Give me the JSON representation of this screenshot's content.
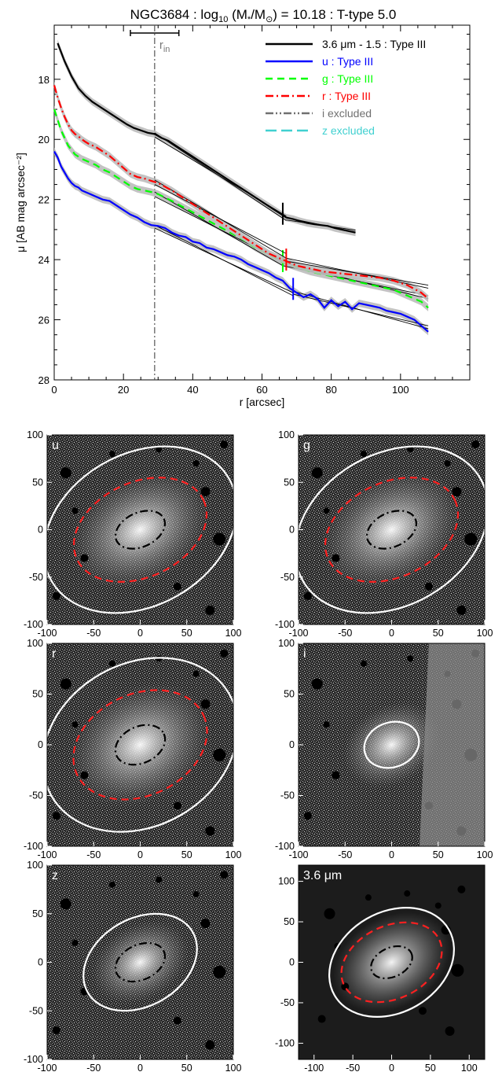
{
  "figure": {
    "title": "NGC3684 : log10 (M*/M⊙) = 10.18 : T-type 5.0"
  },
  "chart_data": [
    {
      "type": "line",
      "title": "NGC3684 : log10 (M*/M⊙) = 10.18 : T-type 5.0",
      "xlabel": "r [arcsec]",
      "ylabel": "μ [AB mag arcsec⁻²]",
      "xlim": [
        0,
        120
      ],
      "ylim": [
        28,
        16.2
      ],
      "y_inverted": true,
      "x_ticks": [
        0,
        20,
        40,
        60,
        80,
        100
      ],
      "y_ticks": [
        18,
        20,
        22,
        24,
        26,
        28
      ],
      "grid": false,
      "legend_position": "top-right",
      "r_in": {
        "label": "r_in",
        "value": 29,
        "err_low": 22,
        "err_high": 36
      },
      "series": [
        {
          "name": "3.6 μm - 1.5 : Type III",
          "color": "#000000",
          "dash": "solid",
          "x": [
            1,
            3,
            5,
            7,
            9,
            11,
            13,
            15,
            17,
            19,
            21,
            23,
            25,
            27,
            29,
            31,
            33,
            35,
            37,
            39,
            41,
            43,
            45,
            47,
            49,
            51,
            53,
            55,
            57,
            59,
            61,
            63,
            65,
            67,
            69,
            71,
            73,
            75,
            77,
            79,
            81,
            83,
            85,
            87
          ],
          "y": [
            16.8,
            17.4,
            17.9,
            18.3,
            18.55,
            18.75,
            18.9,
            19.05,
            19.2,
            19.35,
            19.5,
            19.62,
            19.7,
            19.78,
            19.82,
            19.95,
            20.05,
            20.2,
            20.35,
            20.5,
            20.65,
            20.8,
            20.95,
            21.1,
            21.25,
            21.4,
            21.55,
            21.7,
            21.85,
            22.0,
            22.15,
            22.3,
            22.45,
            22.6,
            22.65,
            22.72,
            22.78,
            22.82,
            22.85,
            22.88,
            22.95,
            23.0,
            23.05,
            23.1
          ],
          "break_r": 66,
          "fits": [
            {
              "x": [
                29,
                67
              ],
              "y": [
                19.78,
                22.7
              ]
            },
            {
              "x": [
                29,
                67
              ],
              "y": [
                19.92,
                22.55
              ]
            },
            {
              "x": [
                67,
                87
              ],
              "y": [
                22.6,
                23.08
              ]
            },
            {
              "x": [
                67,
                87
              ],
              "y": [
                22.68,
                23.02
              ]
            }
          ]
        },
        {
          "name": "u : Type III",
          "color": "#0000ff",
          "dash": "solid",
          "x": [
            0,
            1,
            2,
            3,
            4,
            5,
            6,
            7,
            8,
            9,
            10,
            12,
            14,
            16,
            18,
            20,
            22,
            24,
            26,
            28,
            30,
            32,
            34,
            36,
            38,
            40,
            42,
            44,
            46,
            48,
            50,
            52,
            54,
            56,
            58,
            60,
            62,
            64,
            66,
            68,
            70,
            72,
            74,
            76,
            78,
            80,
            82,
            84,
            86,
            88,
            90,
            92,
            94,
            96,
            98,
            100,
            102,
            104,
            106,
            108
          ],
          "y": [
            20.4,
            20.6,
            20.9,
            21.1,
            21.3,
            21.45,
            21.55,
            21.6,
            21.7,
            21.75,
            21.8,
            21.9,
            22.0,
            22.05,
            22.2,
            22.35,
            22.5,
            22.6,
            22.75,
            22.85,
            22.88,
            22.95,
            23.1,
            23.2,
            23.25,
            23.4,
            23.45,
            23.6,
            23.65,
            23.75,
            23.85,
            23.9,
            24.0,
            24.15,
            24.25,
            24.35,
            24.45,
            24.6,
            24.7,
            24.95,
            25.1,
            25.25,
            25.15,
            25.3,
            25.6,
            25.35,
            25.55,
            25.4,
            25.65,
            25.45,
            25.5,
            25.55,
            25.6,
            25.7,
            25.75,
            25.8,
            25.9,
            26.0,
            26.2,
            26.4
          ],
          "break_r": 69,
          "fits": [
            {
              "x": [
                29,
                69
              ],
              "y": [
                22.85,
                25.2
              ]
            },
            {
              "x": [
                29,
                69
              ],
              "y": [
                22.95,
                25.1
              ]
            },
            {
              "x": [
                69,
                108
              ],
              "y": [
                25.05,
                26.3
              ]
            },
            {
              "x": [
                69,
                108
              ],
              "y": [
                25.15,
                26.2
              ]
            }
          ]
        },
        {
          "name": "g : Type III",
          "color": "#00ff00",
          "dash": "dash",
          "x": [
            0,
            2,
            4,
            6,
            8,
            10,
            12,
            14,
            16,
            18,
            20,
            22,
            24,
            26,
            28,
            30,
            34,
            38,
            42,
            46,
            50,
            54,
            58,
            62,
            66,
            70,
            74,
            78,
            82,
            86,
            90,
            94,
            98,
            102,
            106,
            108
          ],
          "y": [
            19.0,
            19.7,
            20.2,
            20.5,
            20.65,
            20.75,
            20.85,
            21.0,
            21.1,
            21.25,
            21.4,
            21.55,
            21.65,
            21.7,
            21.75,
            21.82,
            22.05,
            22.3,
            22.55,
            22.8,
            23.05,
            23.3,
            23.6,
            23.85,
            24.1,
            24.25,
            24.4,
            24.5,
            24.6,
            24.7,
            24.8,
            24.9,
            25.0,
            25.2,
            25.4,
            25.6
          ],
          "break_r": 66,
          "fits": [
            {
              "x": [
                29,
                66
              ],
              "y": [
                21.75,
                24.2
              ]
            },
            {
              "x": [
                29,
                66
              ],
              "y": [
                21.9,
                24.05
              ]
            },
            {
              "x": [
                66,
                108
              ],
              "y": [
                24.1,
                25.3
              ]
            },
            {
              "x": [
                66,
                108
              ],
              "y": [
                24.2,
                25.2
              ]
            }
          ]
        },
        {
          "name": "r : Type III",
          "color": "#ff0000",
          "dash": "dashdot",
          "x": [
            0,
            1,
            2,
            3,
            4,
            5,
            6,
            7,
            8,
            9,
            10,
            12,
            14,
            16,
            18,
            20,
            22,
            24,
            26,
            28,
            30,
            34,
            38,
            42,
            46,
            50,
            54,
            58,
            62,
            66,
            70,
            74,
            78,
            82,
            86,
            90,
            94,
            98,
            102,
            106,
            108
          ],
          "y": [
            18.2,
            18.6,
            18.95,
            19.25,
            19.5,
            19.7,
            19.82,
            19.9,
            20.0,
            20.08,
            20.15,
            20.25,
            20.4,
            20.55,
            20.75,
            20.95,
            21.15,
            21.25,
            21.3,
            21.38,
            21.45,
            21.7,
            22.0,
            22.3,
            22.6,
            22.9,
            23.2,
            23.5,
            23.8,
            24.0,
            24.2,
            24.3,
            24.4,
            24.45,
            24.5,
            24.55,
            24.6,
            24.7,
            24.85,
            25.1,
            25.3
          ],
          "break_r": 67,
          "fits": [
            {
              "x": [
                29,
                67
              ],
              "y": [
                21.35,
                23.95
              ]
            },
            {
              "x": [
                29,
                67
              ],
              "y": [
                21.5,
                23.8
              ]
            },
            {
              "x": [
                67,
                108
              ],
              "y": [
                23.95,
                24.95
              ]
            },
            {
              "x": [
                67,
                108
              ],
              "y": [
                24.05,
                24.85
              ]
            }
          ]
        },
        {
          "name": "i excluded",
          "color": "#707070",
          "dash": "dashdotdot"
        },
        {
          "name": "z excluded",
          "color": "#40d0d0",
          "dash": "longdash"
        }
      ]
    },
    {
      "type": "image",
      "panels": [
        {
          "label": "u",
          "xlim": [
            -100,
            100
          ],
          "ylim": [
            -100,
            100
          ],
          "x_ticks": [
            -100,
            -50,
            0,
            50,
            100
          ],
          "y_ticks": [
            -100,
            -50,
            0,
            50,
            100
          ],
          "ellipses": [
            {
              "color": "#ffffff",
              "dash": "solid",
              "a": 110,
              "b": 80,
              "angle": 30
            },
            {
              "color": "#ff2020",
              "dash": "dash",
              "a": 75,
              "b": 50,
              "angle": 25
            },
            {
              "color": "#000000",
              "dash": "dashdot",
              "a": 28,
              "b": 18,
              "angle": 25
            }
          ]
        },
        {
          "label": "g",
          "xlim": [
            -100,
            100
          ],
          "ylim": [
            -100,
            100
          ],
          "x_ticks": [
            -100,
            -50,
            0,
            50,
            100
          ],
          "y_ticks": [
            -100,
            -50,
            0,
            50,
            100
          ],
          "ellipses": [
            {
              "color": "#ffffff",
              "dash": "solid",
              "a": 110,
              "b": 80,
              "angle": 30
            },
            {
              "color": "#ff2020",
              "dash": "dash",
              "a": 75,
              "b": 50,
              "angle": 25
            },
            {
              "color": "#000000",
              "dash": "dashdot",
              "a": 28,
              "b": 18,
              "angle": 25
            }
          ]
        },
        {
          "label": "r",
          "xlim": [
            -100,
            100
          ],
          "ylim": [
            -100,
            100
          ],
          "x_ticks": [
            -100,
            -50,
            0,
            50,
            100
          ],
          "y_ticks": [
            -100,
            -50,
            0,
            50,
            100
          ],
          "ellipses": [
            {
              "color": "#ffffff",
              "dash": "solid",
              "a": 110,
              "b": 80,
              "angle": 30
            },
            {
              "color": "#ff2020",
              "dash": "dash",
              "a": 75,
              "b": 50,
              "angle": 25
            },
            {
              "color": "#000000",
              "dash": "dashdot",
              "a": 28,
              "b": 18,
              "angle": 25
            }
          ]
        },
        {
          "label": "i",
          "xlim": [
            -100,
            100
          ],
          "ylim": [
            -100,
            100
          ],
          "x_ticks": [
            -100,
            -50,
            0,
            50,
            100
          ],
          "y_ticks": [
            -100,
            -50,
            0,
            50,
            100
          ],
          "ellipses": [
            {
              "color": "#ffffff",
              "dash": "solid",
              "a": 30,
              "b": 22,
              "angle": 20
            }
          ]
        },
        {
          "label": "z",
          "xlim": [
            -100,
            100
          ],
          "ylim": [
            -100,
            100
          ],
          "x_ticks": [
            -100,
            -50,
            0,
            50,
            100
          ],
          "y_ticks": [
            -100,
            -50,
            0,
            50,
            100
          ],
          "ellipses": [
            {
              "color": "#ffffff",
              "dash": "solid",
              "a": 65,
              "b": 45,
              "angle": 30
            },
            {
              "color": "#000000",
              "dash": "dashdot",
              "a": 28,
              "b": 18,
              "angle": 25
            }
          ]
        },
        {
          "label": "3.6 μm",
          "xlim": [
            -120,
            120
          ],
          "ylim": [
            -120,
            120
          ],
          "x_ticks": [
            -100,
            -50,
            0,
            50,
            100
          ],
          "y_ticks": [
            -100,
            -50,
            0,
            50,
            100
          ],
          "ellipses": [
            {
              "color": "#ffffff",
              "dash": "solid",
              "a": 85,
              "b": 62,
              "angle": 30
            },
            {
              "color": "#ff2020",
              "dash": "dash",
              "a": 68,
              "b": 45,
              "angle": 25
            },
            {
              "color": "#000000",
              "dash": "dashdot",
              "a": 28,
              "b": 18,
              "angle": 25
            }
          ]
        }
      ]
    }
  ]
}
